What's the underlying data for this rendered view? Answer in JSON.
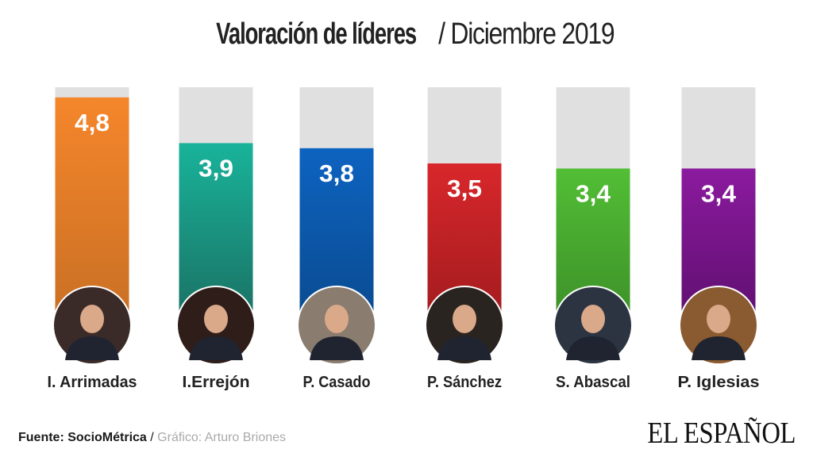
{
  "header": {
    "title_bold": "Valoración de líderes",
    "title_separator": "/",
    "title_light": "Diciembre 2019"
  },
  "chart_data": {
    "type": "bar",
    "title": "Valoración de líderes / Diciembre 2019",
    "xlabel": "",
    "ylabel": "",
    "ylim": [
      0,
      5
    ],
    "grid": false,
    "categories": [
      "I. Arrimadas",
      "I.Errejón",
      "P. Casado",
      "P. Sánchez",
      "S. Abascal",
      "P. Iglesias"
    ],
    "values": [
      4.8,
      3.9,
      3.8,
      3.5,
      3.4,
      3.4
    ],
    "value_labels": [
      "4,8",
      "3,9",
      "3,8",
      "3,5",
      "3,4",
      "3,4"
    ],
    "colors": [
      [
        "#f5862b",
        "#c86f24"
      ],
      [
        "#19b39a",
        "#1a6f62"
      ],
      [
        "#0d63c0",
        "#0a4a8f"
      ],
      [
        "#d8272b",
        "#a01b1e"
      ],
      [
        "#52be35",
        "#3c8f28"
      ],
      [
        "#8b1a9e",
        "#5e0f6f"
      ]
    ],
    "track_color": "#e0e0e0",
    "photo_colors": [
      "#3a2a28",
      "#2e1d18",
      "#8a7c6e",
      "#2a2420",
      "#2c3442",
      "#8a5a30"
    ]
  },
  "footer": {
    "source": "Fuente: SocioMétrica",
    "separator": "/",
    "credit": "Gráfico: Arturo Briones"
  },
  "brand": {
    "logo_text": "EL ESPAÑOL"
  }
}
